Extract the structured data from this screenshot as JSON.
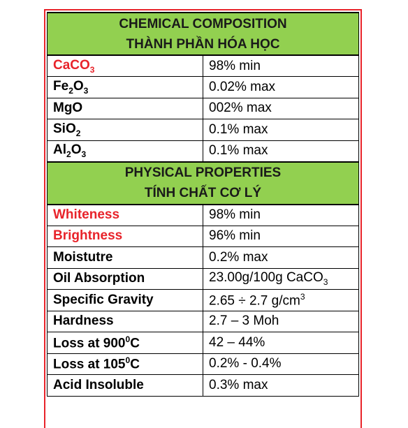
{
  "sections": [
    {
      "title_lines": [
        "CHEMICAL  COMPOSITION",
        "THÀNH PHẦN HÓA HỌC"
      ],
      "rows": [
        {
          "label": [
            "CaCO",
            {
              "sub": "3"
            }
          ],
          "label_color": "#e8232a",
          "value": [
            "98% min"
          ]
        },
        {
          "label": [
            "Fe",
            {
              "sub": "2"
            },
            "O",
            {
              "sub": "3"
            }
          ],
          "value": [
            "0.02% max"
          ]
        },
        {
          "label": [
            "MgO"
          ],
          "value": [
            "002% max"
          ]
        },
        {
          "label": [
            "SiO",
            {
              "sub": "2"
            }
          ],
          "value": [
            "0.1% max"
          ]
        },
        {
          "label": [
            "Al",
            {
              "sub": "2"
            },
            "O",
            {
              "sub": "3"
            }
          ],
          "value": [
            "0.1% max"
          ]
        }
      ]
    },
    {
      "title_lines": [
        "PHYSICAL  PROPERTIES",
        "TÍNH CHẤT CƠ LÝ"
      ],
      "rows": [
        {
          "label": [
            "Whiteness"
          ],
          "label_color": "#e8232a",
          "value": [
            "98% min"
          ]
        },
        {
          "label": [
            "Brightness"
          ],
          "label_color": "#e8232a",
          "value": [
            "96% min"
          ]
        },
        {
          "label": [
            "Moistutre"
          ],
          "value": [
            "0.2% max"
          ]
        },
        {
          "label": [
            "Oil Absorption"
          ],
          "value": [
            "23.00g/100g CaCO",
            {
              "sub": "3"
            }
          ]
        },
        {
          "label": [
            "Specific Gravity"
          ],
          "value": [
            "2.65 ÷ 2.7 g/cm",
            {
              "sup": "3"
            }
          ]
        },
        {
          "label": [
            "Hardness"
          ],
          "value": [
            "2.7 – 3 Moh"
          ]
        },
        {
          "label": [
            "Loss at 900",
            {
              "sup": "0"
            },
            "C"
          ],
          "value": [
            "42 – 44%"
          ]
        },
        {
          "label": [
            "Loss at 105",
            {
              "sup": "0"
            },
            "C"
          ],
          "value": [
            "0.2% - 0.4%"
          ]
        },
        {
          "label": [
            "Acid Insoluble"
          ],
          "value": [
            "0.3% max"
          ]
        }
      ]
    }
  ]
}
